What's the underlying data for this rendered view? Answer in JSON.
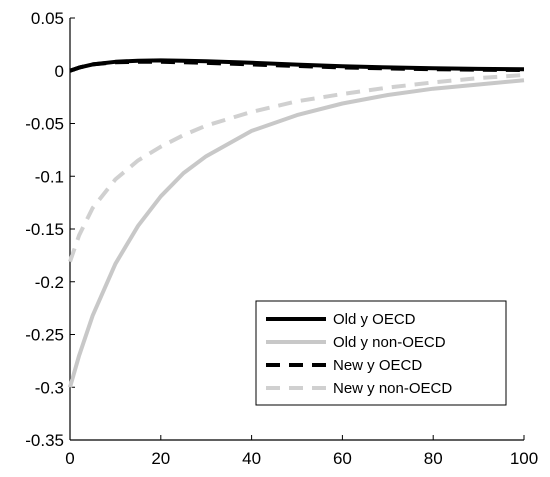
{
  "chart_data": {
    "type": "line",
    "xlim": [
      0,
      100
    ],
    "ylim": [
      -0.35,
      0.05
    ],
    "xticks": [
      0,
      20,
      40,
      60,
      80,
      100
    ],
    "yticks": [
      0.05,
      0,
      -0.05,
      -0.1,
      -0.15,
      -0.2,
      -0.25,
      -0.3,
      -0.35
    ],
    "xtick_labels": [
      "0",
      "20",
      "40",
      "60",
      "80",
      "100"
    ],
    "ytick_labels": [
      "0.05",
      "0",
      "-0.05",
      "-0.1",
      "-0.15",
      "-0.2",
      "-0.25",
      "-0.3",
      "-0.35"
    ],
    "grid": false,
    "legend_position": "bottom-right",
    "x": [
      0,
      2,
      5,
      10,
      15,
      20,
      25,
      30,
      40,
      50,
      60,
      70,
      80,
      90,
      100
    ],
    "series": [
      {
        "name": "Old y OECD",
        "color": "#000000",
        "style": "solid",
        "values": [
          0.0,
          0.003,
          0.006,
          0.0085,
          0.0095,
          0.0098,
          0.0095,
          0.009,
          0.0075,
          0.0058,
          0.0043,
          0.0032,
          0.0024,
          0.0018,
          0.0014
        ]
      },
      {
        "name": "Old y non-OECD",
        "color": "#c8c8c8",
        "style": "solid",
        "values": [
          -0.3,
          -0.27,
          -0.232,
          -0.183,
          -0.147,
          -0.119,
          -0.097,
          -0.081,
          -0.057,
          -0.042,
          -0.031,
          -0.023,
          -0.017,
          -0.013,
          -0.009
        ]
      },
      {
        "name": "New y OECD",
        "color": "#000000",
        "style": "dashed",
        "values": [
          0.0,
          0.003,
          0.006,
          0.008,
          0.0085,
          0.0085,
          0.008,
          0.0075,
          0.006,
          0.0045,
          0.0032,
          0.0022,
          0.0015,
          0.001,
          0.0007
        ]
      },
      {
        "name": "New y non-OECD",
        "color": "#d0d0d0",
        "style": "dashed",
        "values": [
          -0.181,
          -0.156,
          -0.13,
          -0.103,
          -0.085,
          -0.072,
          -0.061,
          -0.052,
          -0.039,
          -0.029,
          -0.022,
          -0.016,
          -0.011,
          -0.007,
          -0.004
        ]
      }
    ]
  }
}
